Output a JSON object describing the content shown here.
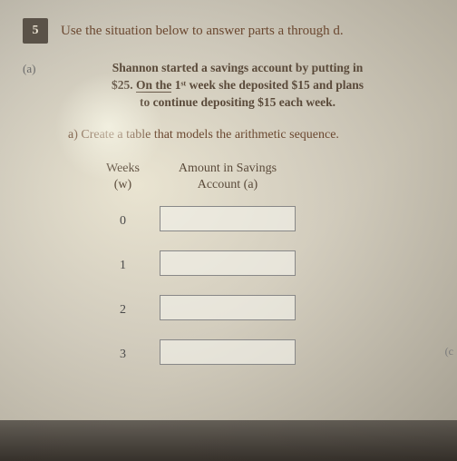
{
  "question_number": "5",
  "main_instruction": "Use the situation below to answer parts a through d.",
  "part_label": "(a)",
  "problem_line1": "Shannon started a savings account by putting in",
  "problem_line2_prefix": "$25. ",
  "problem_line2_underline": "On the",
  "problem_line2_rest": " 1ˢᵗ week she deposited $15 and plans",
  "problem_line3": "to continue depositing $15 each week.",
  "sub_part": "a) Create a table that models the arithmetic sequence.",
  "table": {
    "col1_line1": "Weeks",
    "col1_line2": "(w)",
    "col2_line1": "Amount in Savings",
    "col2_line2": "Account (a)",
    "rows": [
      "0",
      "1",
      "2",
      "3"
    ]
  },
  "side_marker": "(c"
}
